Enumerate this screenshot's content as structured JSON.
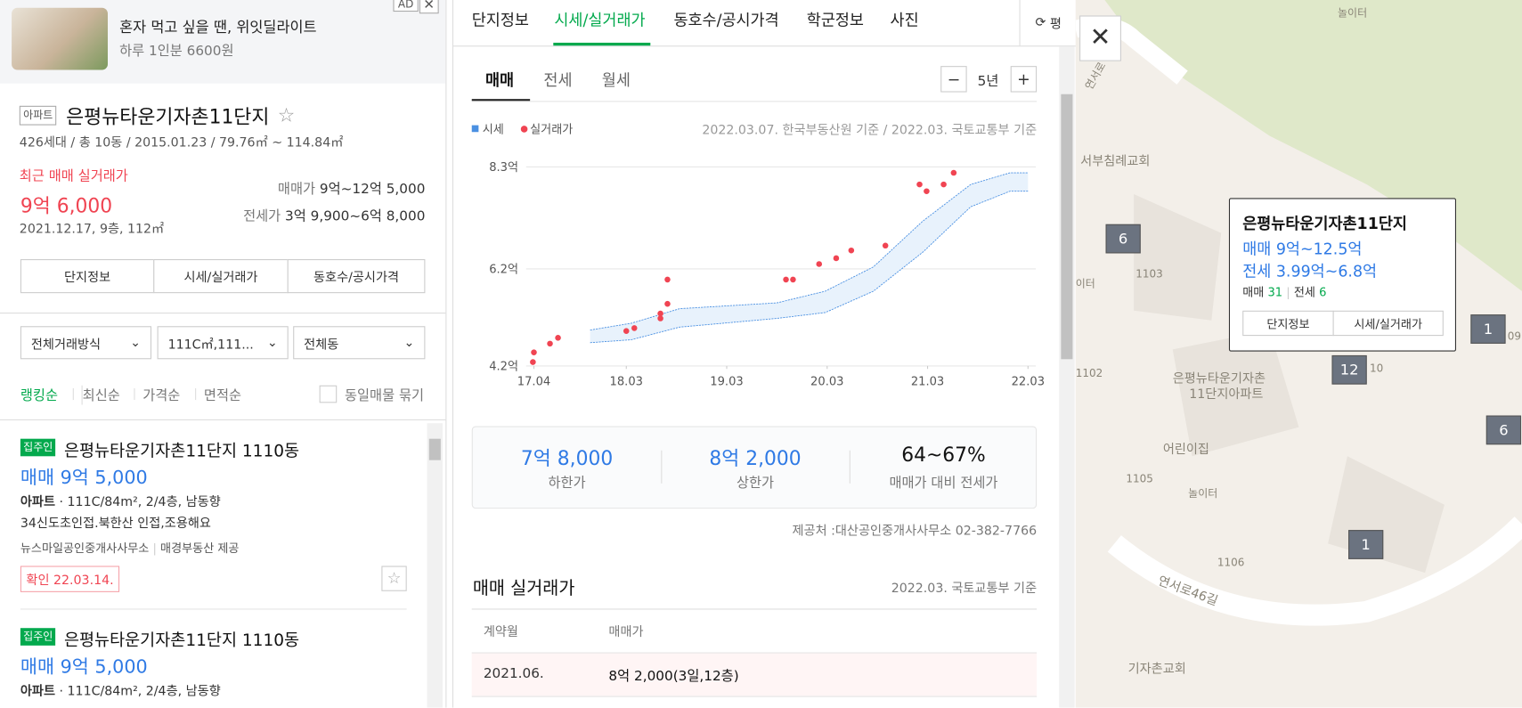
{
  "ad": {
    "badge": "AD",
    "title": "혼자 먹고 싶을 땐, 위잇딜라이트",
    "subtitle": "하루 1인분 6600원"
  },
  "complex": {
    "type_badge": "아파트",
    "name": "은평뉴타운기자촌11단지",
    "info": "426세대 / 총 10동 / 2015.01.23 / 79.76㎡ ~ 114.84㎡",
    "recent_label": "최근 매매 실거래가",
    "recent_price": "9억 6,000",
    "recent_detail": "2021.12.17, 9층, 112㎡",
    "sale_label": "매매가",
    "sale_range": "9억~12억 5,000",
    "jeonse_label": "전세가",
    "jeonse_range": "3억 9,900~6억 8,000",
    "buttons": [
      "단지정보",
      "시세/실거래가",
      "동호수/공시가격"
    ]
  },
  "filters": [
    "전체거래방식",
    "111C㎡,111...",
    "전체동"
  ],
  "sort": {
    "options": [
      "랭킹순",
      "최신순",
      "가격순",
      "면적순"
    ],
    "group_label": "동일매물 묶기"
  },
  "listings": [
    {
      "badge": "집주인",
      "title": "은평뉴타운기자촌11단지 1110동",
      "price": "매매 9억 5,000",
      "type": "아파트",
      "detail": "111C/84m², 2/4층, 남동향",
      "desc": "34신도초인접.북한산 인접,조용해요",
      "agency": "뉴스마일공인중개사사무소",
      "provider": "매경부동산 제공",
      "confirm": "확인 22.03.14."
    },
    {
      "badge": "집주인",
      "title": "은평뉴타운기자촌11단지 1110동",
      "price": "매매 9억 5,000",
      "type": "아파트",
      "detail": "111C/84m², 2/4층, 남동향"
    }
  ],
  "tabs": [
    "단지정보",
    "시세/실거래가",
    "동호수/공시가격",
    "학군정보",
    "사진"
  ],
  "area_toggle": "평",
  "deal_tabs": [
    "매매",
    "전세",
    "월세"
  ],
  "period": "5년",
  "chart": {
    "type": "scatter",
    "note": "2022.03.07. 한국부동산원 기준 / 2022.03. 국토교통부 기준",
    "xlim": [
      2017.25,
      2022.17
    ],
    "xticks": [
      {
        "value": 2017.25,
        "label": "17.04"
      },
      {
        "value": 2018.17,
        "label": "18.03"
      },
      {
        "value": 2019.17,
        "label": "19.03"
      },
      {
        "value": 2020.17,
        "label": "20.03"
      },
      {
        "value": 2021.17,
        "label": "21.03"
      },
      {
        "value": 2022.17,
        "label": "22.03"
      }
    ],
    "ylim": [
      4.2,
      8.3
    ],
    "yticks": [
      {
        "value": 4.2,
        "label": "4.2억"
      },
      {
        "value": 6.2,
        "label": "6.2억"
      },
      {
        "value": 8.3,
        "label": "8.3억"
      }
    ],
    "grid": true,
    "series": [
      {
        "name": "시세",
        "color": "#4a90e2",
        "x": [
          2017.81,
          2018.22,
          2018.7,
          2019.67,
          2020.15,
          2020.63,
          2021.12,
          2021.6,
          2021.99,
          2022.17
        ],
        "low": [
          4.68,
          4.74,
          5.0,
          5.18,
          5.3,
          5.74,
          6.54,
          7.48,
          7.8,
          7.8
        ],
        "high": [
          4.94,
          5.08,
          5.38,
          5.5,
          5.74,
          6.24,
          7.18,
          7.94,
          8.18,
          8.18
        ]
      },
      {
        "name": "실거래가",
        "color": "#f04452",
        "x": [
          2017.24,
          2017.25,
          2017.41,
          2017.49,
          2018.17,
          2018.25,
          2018.51,
          2018.51,
          2018.58,
          2018.58,
          2019.76,
          2019.83,
          2020.09,
          2020.26,
          2020.41,
          2020.75,
          2021.09,
          2021.16,
          2021.33,
          2021.43
        ],
        "values": [
          4.28,
          4.48,
          4.66,
          4.78,
          4.92,
          4.98,
          5.18,
          5.28,
          5.48,
          5.98,
          5.98,
          5.98,
          6.3,
          6.42,
          6.58,
          6.68,
          7.94,
          7.8,
          7.94,
          8.18
        ]
      }
    ]
  },
  "summary": [
    {
      "value": "7억 8,000",
      "label": "하한가"
    },
    {
      "value": "8억 2,000",
      "label": "상한가"
    },
    {
      "value": "64~67%",
      "label": "매매가 대비 전세가"
    }
  ],
  "source": "제공처 :대산공인중개사사무소 02-382-7766",
  "transactions": {
    "title": "매매 실거래가",
    "basis": "2022.03. 국토교통부 기준",
    "columns": [
      "계약월",
      "매매가"
    ],
    "rows": [
      [
        "2021.06.",
        "8억 2,000(3일,12층)"
      ]
    ]
  },
  "map": {
    "labels": [
      "놀이터",
      "연서로",
      "서부침례교회",
      "이터",
      "1103",
      "1102",
      "은평뉴타운기자촌",
      "11단지아파트",
      "어린이집",
      "1105",
      "놀이터",
      "1106",
      "107",
      "연서로46길",
      "기자촌교회",
      "09",
      "10"
    ],
    "markers": [
      "6",
      "1",
      "12",
      "6",
      "1"
    ],
    "popup": {
      "title": "은평뉴타운기자촌11단지",
      "sale": "매매 9억~12.5억",
      "jeonse": "전세 3.99억~6.8억",
      "sale_count_label": "매매",
      "sale_count": 31,
      "jeonse_count_label": "전세",
      "jeonse_count": 6,
      "buttons": [
        "단지정보",
        "시세/실거래가"
      ]
    }
  }
}
